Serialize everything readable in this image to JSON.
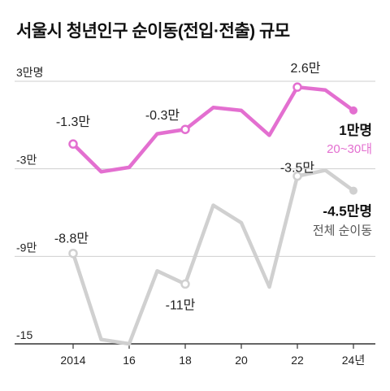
{
  "chart_data": {
    "type": "line",
    "title": "서울시 청년인구 순이동(전입·전출) 규모",
    "x": [
      2014,
      2015,
      2016,
      2017,
      2018,
      2019,
      2020,
      2021,
      2022,
      2023,
      2024
    ],
    "xticks": [
      "2014",
      "16",
      "18",
      "20",
      "22",
      "24년"
    ],
    "xtick_values": [
      2014,
      2016,
      2018,
      2020,
      2022,
      2024
    ],
    "yticks": [
      "3만명",
      "-3만",
      "-9만",
      "-15"
    ],
    "ytick_values": [
      3,
      -3,
      -9,
      -15
    ],
    "ylim": [
      -15,
      3
    ],
    "xlim": [
      2014,
      2024
    ],
    "grid": true,
    "series": [
      {
        "name": "20~30대",
        "end_value_label": "1만명",
        "color": "#e36fd0",
        "values": [
          -1.3,
          -3.2,
          -2.9,
          -0.6,
          -0.3,
          1.2,
          1.0,
          -0.7,
          2.6,
          2.4,
          1.0
        ],
        "point_labels": {
          "2014": "-1.3만",
          "2018": "-0.3만",
          "2022": "2.6만"
        }
      },
      {
        "name": "전체 순이동",
        "end_value_label": "-4.5만명",
        "color": "#d0d0d0",
        "values": [
          -8.8,
          -14.7,
          -15.0,
          -10.0,
          -10.9,
          -5.5,
          -6.7,
          -11.1,
          -3.5,
          -3.1,
          -4.5
        ],
        "point_labels": {
          "2014": "-8.8만",
          "2018": "-11만",
          "2022": "-3.5만"
        }
      }
    ]
  }
}
